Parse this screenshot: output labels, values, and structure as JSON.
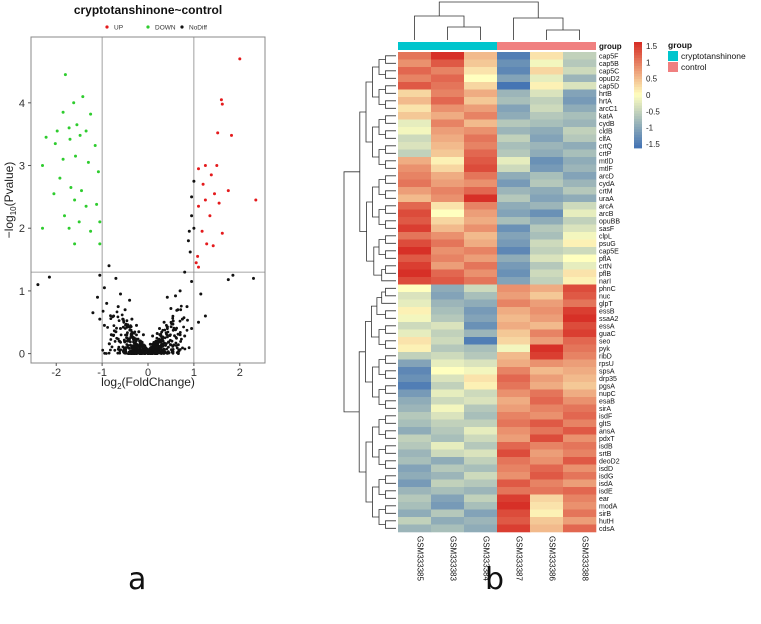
{
  "panel_labels": {
    "a": "a",
    "b": "b"
  },
  "colors": {
    "up": "#e41a1c",
    "down": "#2ecc2e",
    "nodiff": "#111111",
    "group_cryptotanshinone": "#00c5cd",
    "group_control": "#f08080",
    "heat_high": "#d73027",
    "heat_mid": "#ffffbf",
    "heat_low": "#4575b4"
  },
  "chart_data": [
    {
      "type": "scatter",
      "title": "cryptotanshinone~control",
      "legend": [
        "UP",
        "DOWN",
        "NoDiff"
      ],
      "xlabel": "log2(FoldChange)",
      "ylabel": "-log10(Pvalue)",
      "xlabel_base": "log",
      "xlabel_sub": "2",
      "xlabel_rest": "(FoldChange)",
      "ylabel_pre": "−log",
      "ylabel_sub": "10",
      "ylabel_rest": "(Pvalue)",
      "xlim": [
        -2.55,
        2.55
      ],
      "ylim": [
        -0.15,
        5.05
      ],
      "xticks": [
        -2,
        -1,
        0,
        1,
        2
      ],
      "yticks": [
        0,
        1,
        2,
        3,
        4
      ],
      "thresholds": {
        "x": [
          -1,
          1
        ],
        "y": 1.3
      },
      "series": [
        {
          "name": "UP",
          "points": [
            [
              2.0,
              4.7
            ],
            [
              1.6,
              4.05
            ],
            [
              1.62,
              3.98
            ],
            [
              1.52,
              3.52
            ],
            [
              1.82,
              3.48
            ],
            [
              1.25,
              3.0
            ],
            [
              1.5,
              3.0
            ],
            [
              1.1,
              2.95
            ],
            [
              1.38,
              2.85
            ],
            [
              1.2,
              2.7
            ],
            [
              1.75,
              2.6
            ],
            [
              1.45,
              2.55
            ],
            [
              1.25,
              2.45
            ],
            [
              1.55,
              2.4
            ],
            [
              1.1,
              2.35
            ],
            [
              1.35,
              2.2
            ],
            [
              2.35,
              2.45
            ],
            [
              1.18,
              1.95
            ],
            [
              1.62,
              1.92
            ],
            [
              1.28,
              1.75
            ],
            [
              1.42,
              1.72
            ],
            [
              1.08,
              1.55
            ],
            [
              1.05,
              1.45
            ],
            [
              1.1,
              1.38
            ]
          ]
        },
        {
          "name": "DOWN",
          "points": [
            [
              -1.8,
              4.45
            ],
            [
              -1.62,
              4.0
            ],
            [
              -1.42,
              4.1
            ],
            [
              -1.85,
              3.85
            ],
            [
              -1.25,
              3.82
            ],
            [
              -1.55,
              3.65
            ],
            [
              -1.72,
              3.6
            ],
            [
              -1.98,
              3.55
            ],
            [
              -1.35,
              3.55
            ],
            [
              -1.48,
              3.48
            ],
            [
              -2.22,
              3.45
            ],
            [
              -1.7,
              3.42
            ],
            [
              -2.02,
              3.35
            ],
            [
              -1.15,
              3.32
            ],
            [
              -1.58,
              3.15
            ],
            [
              -1.85,
              3.1
            ],
            [
              -1.3,
              3.05
            ],
            [
              -2.3,
              3.0
            ],
            [
              -1.08,
              2.9
            ],
            [
              -1.92,
              2.8
            ],
            [
              -1.68,
              2.65
            ],
            [
              -1.45,
              2.6
            ],
            [
              -2.05,
              2.55
            ],
            [
              -1.6,
              2.45
            ],
            [
              -1.35,
              2.35
            ],
            [
              -1.12,
              2.38
            ],
            [
              -1.82,
              2.2
            ],
            [
              -1.5,
              2.1
            ],
            [
              -2.3,
              2.0
            ],
            [
              -1.72,
              2.0
            ],
            [
              -1.25,
              1.95
            ],
            [
              -1.05,
              2.1
            ],
            [
              -1.6,
              1.75
            ],
            [
              -1.05,
              1.75
            ]
          ]
        },
        {
          "name": "NoDiff",
          "points": [
            [
              -2.4,
              1.1
            ],
            [
              -2.15,
              1.22
            ],
            [
              2.3,
              1.2
            ],
            [
              1.85,
              1.25
            ],
            [
              1.75,
              1.18
            ],
            [
              -1.05,
              1.25
            ],
            [
              -0.95,
              1.05
            ],
            [
              0.95,
              1.15
            ],
            [
              -0.85,
              1.4
            ],
            [
              0.8,
              1.3
            ],
            [
              1.0,
              2.0
            ],
            [
              0.95,
              2.5
            ],
            [
              1.0,
              2.75
            ],
            [
              0.88,
              1.8
            ],
            [
              0.92,
              1.62
            ],
            [
              -0.7,
              1.2
            ],
            [
              0.7,
              1.0
            ],
            [
              -0.6,
              0.95
            ],
            [
              0.6,
              0.92
            ],
            [
              -0.9,
              0.8
            ],
            [
              0.85,
              0.75
            ],
            [
              -1.05,
              0.55
            ],
            [
              1.1,
              0.5
            ],
            [
              -0.75,
              0.6
            ],
            [
              0.75,
              0.55
            ],
            [
              -0.5,
              0.7
            ],
            [
              0.5,
              0.72
            ],
            [
              -0.35,
              0.55
            ],
            [
              0.35,
              0.5
            ],
            [
              -0.2,
              0.35
            ],
            [
              0.2,
              0.32
            ],
            [
              -0.6,
              0.4
            ],
            [
              0.6,
              0.38
            ],
            [
              -0.3,
              0.25
            ],
            [
              0.3,
              0.22
            ],
            [
              -0.15,
              0.12
            ],
            [
              0.15,
              0.1
            ],
            [
              -0.45,
              0.2
            ],
            [
              0.45,
              0.18
            ],
            [
              0.0,
              0.05
            ],
            [
              -0.1,
              0.3
            ],
            [
              0.1,
              0.28
            ],
            [
              -0.8,
              0.3
            ],
            [
              0.8,
              0.28
            ],
            [
              -1.2,
              0.65
            ],
            [
              1.25,
              0.6
            ],
            [
              -0.4,
              0.85
            ],
            [
              0.42,
              0.9
            ],
            [
              -0.65,
              0.75
            ],
            [
              0.65,
              0.7
            ],
            [
              0.05,
              0.15
            ],
            [
              -0.05,
              0.08
            ],
            [
              -0.25,
              0.45
            ],
            [
              0.25,
              0.4
            ],
            [
              -0.55,
              0.55
            ],
            [
              0.55,
              0.52
            ],
            [
              -0.7,
              0.35
            ],
            [
              0.7,
              0.3
            ],
            [
              -0.95,
              0.45
            ],
            [
              0.95,
              0.4
            ],
            [
              -1.1,
              0.9
            ],
            [
              1.15,
              0.95
            ],
            [
              0.9,
              1.95
            ],
            [
              0.95,
              2.2
            ]
          ]
        }
      ]
    },
    {
      "type": "heatmap",
      "columns": [
        "GSM333385",
        "GSM333383",
        "GSM333384",
        "GSM333387",
        "GSM333386",
        "GSM333388"
      ],
      "column_groups": [
        "cryptotanshinone",
        "cryptotanshinone",
        "cryptotanshinone",
        "control",
        "control",
        "control"
      ],
      "group_label": "group",
      "group_legend_title": "group",
      "group_legend": [
        "cryptotanshinone",
        "control"
      ],
      "color_scale": {
        "min": -1.5,
        "max": 1.5,
        "ticks": [
          "1.5",
          "1",
          "0.5",
          "0",
          "-0.5",
          "-1",
          "-1.5"
        ]
      },
      "rows": [
        "cap5F",
        "cap5B",
        "cap5C",
        "opuD2",
        "cap5D",
        "hrtB",
        "hrtA",
        "arcC1",
        "katA",
        "cydB",
        "cldB",
        "clfA",
        "crtQ",
        "crtP",
        "mtlD",
        "mtlF",
        "arcD",
        "cydA",
        "crtM",
        "uraA",
        "arcA",
        "arcB",
        "opuBB",
        "sasF",
        "clpL",
        "psuG",
        "cap5E",
        "pflA",
        "crtN",
        "pflB",
        "narI",
        "phnC",
        "nuc",
        "glpT",
        "essB",
        "ssaA2",
        "essA",
        "guaC",
        "seo",
        "pyk",
        "ribD",
        "rpsU",
        "spsA",
        "drp35",
        "pgsA",
        "nupC",
        "esaB",
        "sirA",
        "isdF",
        "gltS",
        "ansA",
        "pdxT",
        "isdB",
        "srtB",
        "deoD2",
        "isdD",
        "isdG",
        "isdA",
        "isdE",
        "ear",
        "modA",
        "sirB",
        "hutH",
        "cdsA"
      ],
      "values": [
        [
          1.0,
          1.6,
          0.5,
          -1.4,
          0.2,
          -0.5
        ],
        [
          0.8,
          1.2,
          0.4,
          -1.2,
          -0.1,
          -0.6
        ],
        [
          1.1,
          0.9,
          0.2,
          -1.3,
          0.3,
          -0.4
        ],
        [
          0.9,
          1.1,
          0.0,
          -1.0,
          -0.2,
          -0.8
        ],
        [
          1.2,
          1.0,
          0.3,
          -1.5,
          0.1,
          -0.3
        ],
        [
          0.3,
          0.9,
          0.6,
          -0.8,
          -0.3,
          -1.0
        ],
        [
          0.5,
          1.1,
          0.4,
          -0.7,
          -0.5,
          -1.1
        ],
        [
          0.2,
          0.8,
          0.7,
          -1.0,
          -0.4,
          -0.9
        ],
        [
          0.4,
          0.6,
          0.9,
          -0.9,
          -0.6,
          -0.7
        ],
        [
          -0.2,
          0.9,
          0.5,
          -0.6,
          -0.7,
          -0.8
        ],
        [
          -0.1,
          0.7,
          0.8,
          -0.8,
          -0.9,
          -0.5
        ],
        [
          -0.4,
          0.6,
          1.0,
          -0.5,
          -1.0,
          -0.6
        ],
        [
          -0.3,
          0.5,
          0.9,
          -0.7,
          -0.8,
          -0.9
        ],
        [
          -0.5,
          0.4,
          1.1,
          -0.6,
          -0.9,
          -0.7
        ],
        [
          0.6,
          0.1,
          1.2,
          -0.2,
          -1.2,
          -0.9
        ],
        [
          0.8,
          0.3,
          1.3,
          -0.4,
          -1.1,
          -0.8
        ],
        [
          0.9,
          0.6,
          1.0,
          -0.9,
          -0.7,
          -1.0
        ],
        [
          1.0,
          0.7,
          0.8,
          -1.1,
          -0.6,
          -0.8
        ],
        [
          0.7,
          0.9,
          1.1,
          -0.8,
          -0.9,
          -0.6
        ],
        [
          0.5,
          0.8,
          1.5,
          -0.6,
          -1.0,
          -0.9
        ],
        [
          1.1,
          0.2,
          0.9,
          -0.9,
          -0.8,
          -0.4
        ],
        [
          1.3,
          0.0,
          0.7,
          -1.0,
          -1.2,
          -0.2
        ],
        [
          1.2,
          0.3,
          0.6,
          -0.7,
          -0.9,
          -0.5
        ],
        [
          1.4,
          0.5,
          0.8,
          -1.2,
          -0.6,
          -0.3
        ],
        [
          1.0,
          0.8,
          0.5,
          -1.0,
          -0.7,
          -0.1
        ],
        [
          1.3,
          1.0,
          0.6,
          -1.1,
          -0.4,
          0.1
        ],
        [
          1.5,
          0.8,
          0.9,
          -1.3,
          -0.5,
          -0.4
        ],
        [
          1.2,
          0.9,
          0.7,
          -0.9,
          -0.3,
          0.0
        ],
        [
          1.4,
          0.7,
          1.0,
          -1.1,
          -0.6,
          -0.2
        ],
        [
          1.5,
          1.1,
          0.8,
          -1.2,
          -0.4,
          0.2
        ],
        [
          1.3,
          1.2,
          1.0,
          -1.0,
          -0.5,
          0.1
        ],
        [
          0.0,
          -0.9,
          -0.4,
          0.8,
          0.6,
          1.3
        ],
        [
          -0.3,
          -1.0,
          -0.7,
          0.7,
          0.4,
          1.2
        ],
        [
          -0.2,
          -0.8,
          -0.9,
          0.9,
          0.7,
          1.0
        ],
        [
          0.1,
          -0.7,
          -1.1,
          0.6,
          0.8,
          1.4
        ],
        [
          -0.1,
          -0.6,
          -1.0,
          0.5,
          0.7,
          1.5
        ],
        [
          -0.4,
          -0.3,
          -1.2,
          0.6,
          0.5,
          1.3
        ],
        [
          -0.2,
          -0.5,
          -0.8,
          0.4,
          0.9,
          1.4
        ],
        [
          0.2,
          -0.4,
          -1.4,
          0.3,
          0.7,
          1.1
        ],
        [
          0.1,
          -0.6,
          -0.7,
          -0.1,
          1.6,
          1.0
        ],
        [
          -0.5,
          -0.4,
          -0.6,
          0.5,
          1.4,
          0.9
        ],
        [
          -1.0,
          -0.2,
          -0.3,
          0.6,
          0.8,
          0.7
        ],
        [
          -1.3,
          0.0,
          -0.1,
          0.9,
          0.5,
          0.6
        ],
        [
          -1.2,
          -0.3,
          0.2,
          1.1,
          0.7,
          0.5
        ],
        [
          -1.4,
          -0.5,
          0.1,
          1.0,
          0.6,
          0.4
        ],
        [
          -1.1,
          -0.2,
          -0.4,
          0.8,
          1.0,
          0.6
        ],
        [
          -0.9,
          -0.4,
          -0.3,
          0.6,
          1.1,
          0.8
        ],
        [
          -0.8,
          -0.1,
          -0.6,
          0.7,
          0.9,
          1.0
        ],
        [
          -0.6,
          -0.3,
          -0.7,
          0.9,
          0.8,
          1.1
        ],
        [
          -0.7,
          -0.5,
          -0.5,
          1.0,
          1.2,
          0.9
        ],
        [
          -0.9,
          -0.6,
          -0.2,
          0.8,
          1.0,
          1.2
        ],
        [
          -0.5,
          -0.7,
          -0.4,
          0.7,
          1.3,
          0.8
        ],
        [
          -0.6,
          -0.2,
          -0.6,
          1.1,
          0.9,
          1.0
        ],
        [
          -0.8,
          -0.4,
          -0.3,
          1.3,
          0.7,
          0.9
        ],
        [
          -0.7,
          -0.9,
          -0.5,
          1.0,
          0.8,
          1.2
        ],
        [
          -1.0,
          -0.6,
          -0.7,
          0.9,
          1.1,
          0.8
        ],
        [
          -0.9,
          -0.8,
          -0.4,
          0.8,
          1.2,
          1.0
        ],
        [
          -1.1,
          -0.5,
          -0.6,
          1.2,
          0.9,
          0.7
        ],
        [
          -0.8,
          -0.7,
          -0.8,
          1.0,
          1.0,
          1.1
        ],
        [
          -0.6,
          -1.0,
          -0.5,
          1.4,
          0.3,
          0.9
        ],
        [
          -0.7,
          -1.1,
          -0.7,
          1.5,
          0.2,
          0.8
        ],
        [
          -0.9,
          -0.6,
          -1.0,
          1.3,
          0.1,
          1.0
        ],
        [
          -0.5,
          -0.9,
          -0.8,
          1.2,
          0.4,
          0.7
        ],
        [
          -0.8,
          -0.7,
          -0.9,
          1.4,
          0.5,
          1.1
        ]
      ]
    }
  ]
}
